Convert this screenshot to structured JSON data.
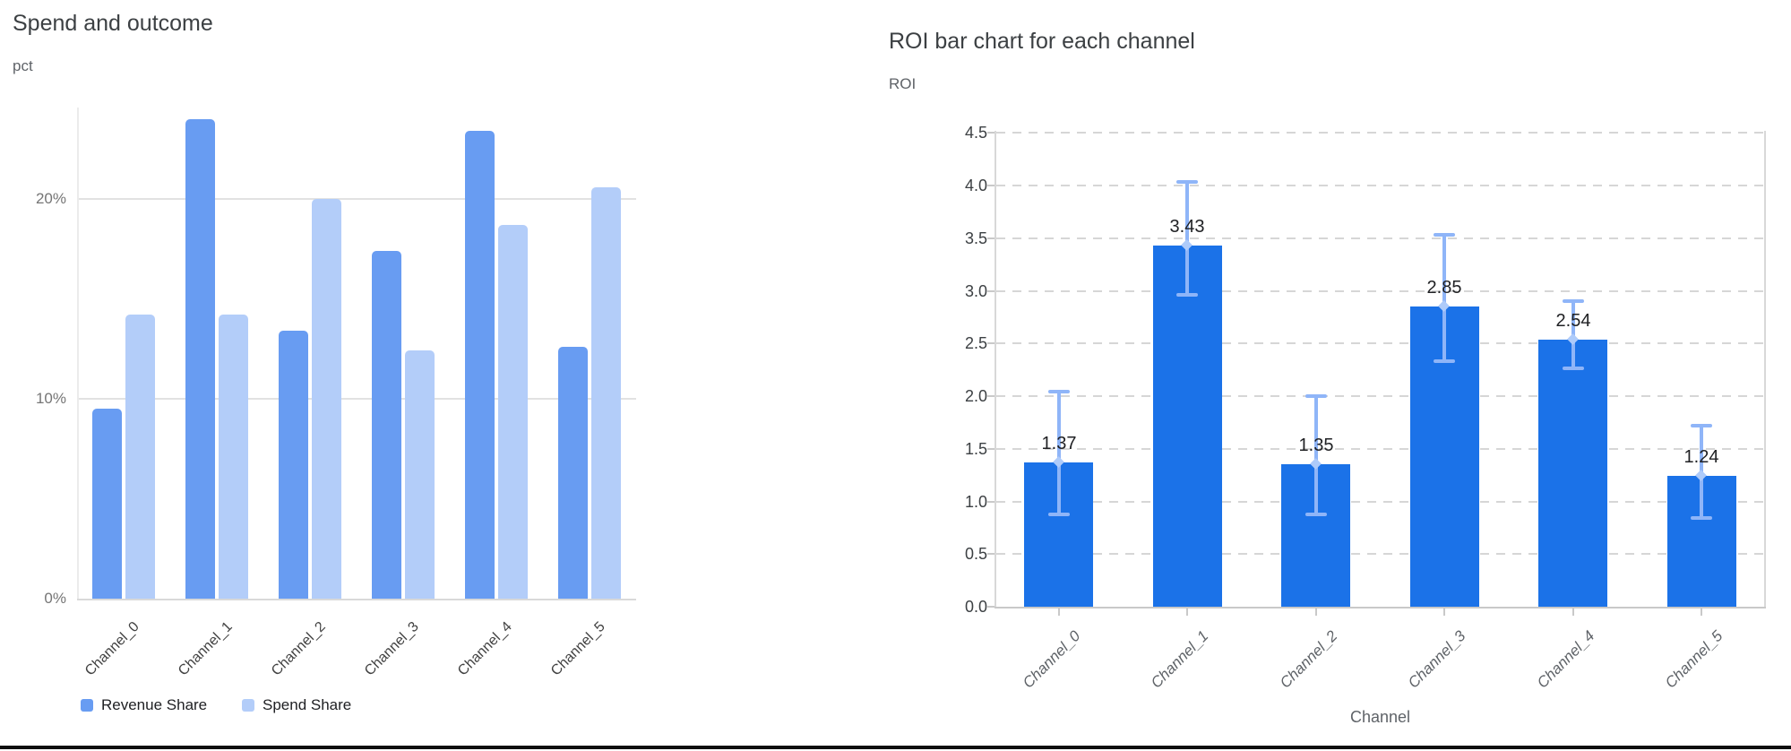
{
  "page": {
    "background": "#ffffff",
    "bottom_rule_color": "#0e0e0e"
  },
  "chart_data": [
    {
      "id": "spend_and_outcome",
      "type": "bar",
      "title": "Spend and outcome",
      "y_axis_unit": "pct",
      "categories": [
        "Channel_0",
        "Channel_1",
        "Channel_2",
        "Channel_3",
        "Channel_4",
        "Channel_5"
      ],
      "series": [
        {
          "name": "Revenue Share",
          "color": "#689CF2",
          "values": [
            9.5,
            24.0,
            13.4,
            17.4,
            23.4,
            12.6
          ]
        },
        {
          "name": "Spend Share",
          "color": "#B3CDF9",
          "values": [
            14.2,
            14.2,
            20.0,
            12.4,
            18.7,
            20.6
          ]
        }
      ],
      "y_ticks": [
        {
          "label": "0%",
          "value": 0
        },
        {
          "label": "10%",
          "value": 10
        },
        {
          "label": "20%",
          "value": 20
        }
      ],
      "ylim": [
        0,
        24.6
      ],
      "grid": "solid-horizontal",
      "legend_position": "bottom-left"
    },
    {
      "id": "roi_by_channel",
      "type": "bar",
      "title": "ROI bar chart for each channel",
      "y_axis_label": "ROI",
      "x_axis_label": "Channel",
      "categories": [
        "Channel_0",
        "Channel_1",
        "Channel_2",
        "Channel_3",
        "Channel_4",
        "Channel_5"
      ],
      "values": [
        1.37,
        3.43,
        1.35,
        2.85,
        2.54,
        1.24
      ],
      "error_low": [
        0.88,
        2.96,
        0.88,
        2.33,
        2.26,
        0.84
      ],
      "error_high": [
        2.04,
        4.03,
        2.0,
        3.53,
        2.9,
        1.72
      ],
      "y_tick_labels": [
        "0.0",
        "0.5",
        "1.0",
        "1.5",
        "2.0",
        "2.5",
        "3.0",
        "3.5",
        "4.0",
        "4.5"
      ],
      "ylim": [
        0,
        4.5
      ],
      "bar_color": "#1B72E8",
      "error_bar_color": "#8FB5F8",
      "error_point_color": "#AECBFA",
      "grid": "dashed-horizontal",
      "legend_position": "none"
    }
  ]
}
